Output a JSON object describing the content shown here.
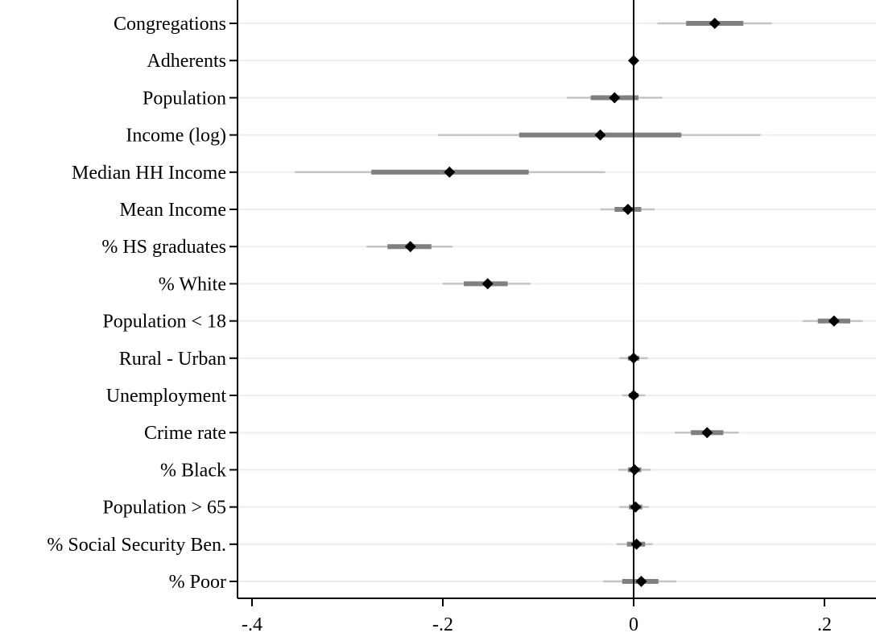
{
  "chart_data": {
    "type": "scatter",
    "title": "",
    "xlabel": "",
    "ylabel": "",
    "xlim": [
      -0.42,
      0.255
    ],
    "x_ticks": [
      {
        "value": -0.4,
        "label": "-.4"
      },
      {
        "value": -0.2,
        "label": "-.2"
      },
      {
        "value": 0,
        "label": "0"
      },
      {
        "value": 0.2,
        "label": ".2"
      }
    ],
    "reference_line_x": 0,
    "grid": "horizontal",
    "colors": {
      "point": "#000000",
      "ci_inner": "#808080",
      "ci_outer": "#c4c4c4",
      "grid": "#e8f0f2",
      "axis": "#000000"
    },
    "categories": [
      "Congregations",
      "Adherents",
      "Population",
      "Income (log)",
      "Median HH Income",
      "Mean Income",
      "% HS graduates",
      "% White",
      "Population < 18",
      "Rural - Urban",
      "Unemployment",
      "Crime rate",
      "% Black",
      "Population > 65",
      "% Social Security Ben.",
      "% Poor"
    ],
    "series": [
      {
        "estimates": [
          0.085,
          0.0,
          -0.02,
          -0.035,
          -0.193,
          -0.006,
          -0.234,
          -0.153,
          0.21,
          0.0,
          0.0,
          0.077,
          0.001,
          0.002,
          0.003,
          0.008
        ],
        "ci_inner": [
          [
            0.055,
            0.115
          ],
          [
            -0.002,
            0.002
          ],
          [
            -0.045,
            0.005
          ],
          [
            -0.12,
            0.05
          ],
          [
            -0.275,
            -0.11
          ],
          [
            -0.02,
            0.008
          ],
          [
            -0.258,
            -0.212
          ],
          [
            -0.178,
            -0.132
          ],
          [
            0.193,
            0.227
          ],
          [
            -0.006,
            0.006
          ],
          [
            -0.005,
            0.005
          ],
          [
            0.06,
            0.094
          ],
          [
            -0.006,
            0.008
          ],
          [
            -0.005,
            0.009
          ],
          [
            -0.007,
            0.012
          ],
          [
            -0.012,
            0.026
          ]
        ],
        "ci_outer": [
          [
            0.025,
            0.145
          ],
          [
            -0.003,
            0.003
          ],
          [
            -0.07,
            0.03
          ],
          [
            -0.205,
            0.133
          ],
          [
            -0.355,
            -0.03
          ],
          [
            -0.035,
            0.022
          ],
          [
            -0.28,
            -0.19
          ],
          [
            -0.2,
            -0.108
          ],
          [
            0.177,
            0.24
          ],
          [
            -0.015,
            0.015
          ],
          [
            -0.012,
            0.012
          ],
          [
            0.043,
            0.11
          ],
          [
            -0.016,
            0.018
          ],
          [
            -0.015,
            0.016
          ],
          [
            -0.018,
            0.02
          ],
          [
            -0.032,
            0.045
          ]
        ]
      }
    ]
  }
}
